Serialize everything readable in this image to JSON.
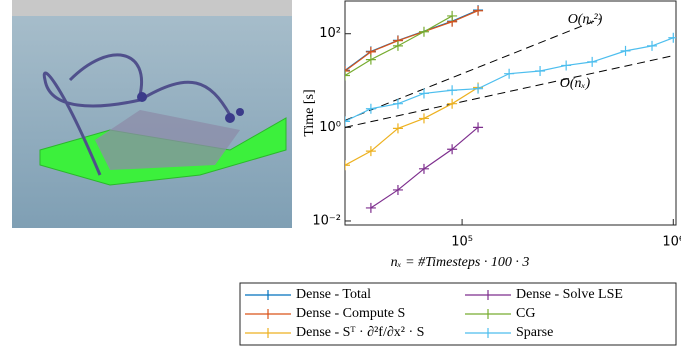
{
  "chart_data": {
    "type": "line",
    "xlabel": "nₓ = #Timesteps · 100 · 3",
    "ylabel": "Time [s]",
    "log_x": true,
    "log_y": true,
    "xlim": [
      27900,
      1030000
    ],
    "ylim": [
      0.0082,
      500
    ],
    "xticks": [
      {
        "value": 100000,
        "label": "10⁵"
      },
      {
        "value": 1000000,
        "label": "10⁶"
      }
    ],
    "yticks": [
      {
        "value": 0.01,
        "label": "10⁻²"
      },
      {
        "value": 1,
        "label": "10⁰"
      },
      {
        "value": 100,
        "label": "10²"
      }
    ],
    "series": [
      {
        "name": "Dense - Total",
        "color": "#0072BD",
        "x": [
          27900,
          37000,
          49700,
          89700,
          119000
        ],
        "values": [
          16.5,
          42,
          72,
          185,
          320
        ]
      },
      {
        "name": "Dense - Compute S",
        "color": "#D95319",
        "x": [
          27900,
          37000,
          49700,
          89700,
          119000
        ],
        "values": [
          16,
          41,
          71,
          180,
          310
        ]
      },
      {
        "name": "Dense - Sᵀ · ∂²f/∂x² · S",
        "color": "#EDB120",
        "x": [
          27900,
          37000,
          49700,
          66000,
          89700,
          119000
        ],
        "values": [
          0.155,
          0.31,
          0.95,
          1.55,
          3.2,
          7.1
        ]
      },
      {
        "name": "Dense - Solve LSE",
        "color": "#7E2F8E",
        "x": [
          37000,
          49700,
          66000,
          89700,
          119000
        ],
        "values": [
          0.019,
          0.046,
          0.13,
          0.34,
          1.0
        ]
      },
      {
        "name": "CG",
        "color": "#77AC30",
        "x": [
          27900,
          37000,
          49700,
          66000,
          89700
        ],
        "values": [
          12.8,
          28,
          55,
          110,
          240
        ]
      },
      {
        "name": "Sparse",
        "color": "#4DBEEE",
        "x": [
          27900,
          37000,
          49700,
          66000,
          89700,
          119000,
          167000,
          234000,
          311000,
          413000,
          594000,
          793000,
          1000000
        ],
        "values": [
          1.34,
          2.5,
          3.2,
          5.3,
          6.2,
          6.7,
          14,
          16,
          21,
          25,
          43,
          55,
          82
        ]
      }
    ],
    "reference_lines": [
      {
        "label": "O(nₓ²)",
        "x": [
          27900,
          451000
        ],
        "values": [
          1.41,
          209
        ]
      },
      {
        "label": "O(nₓ)",
        "x": [
          27900,
          1000000
        ],
        "values": [
          1.0,
          34
        ]
      }
    ],
    "legend": "below"
  }
}
